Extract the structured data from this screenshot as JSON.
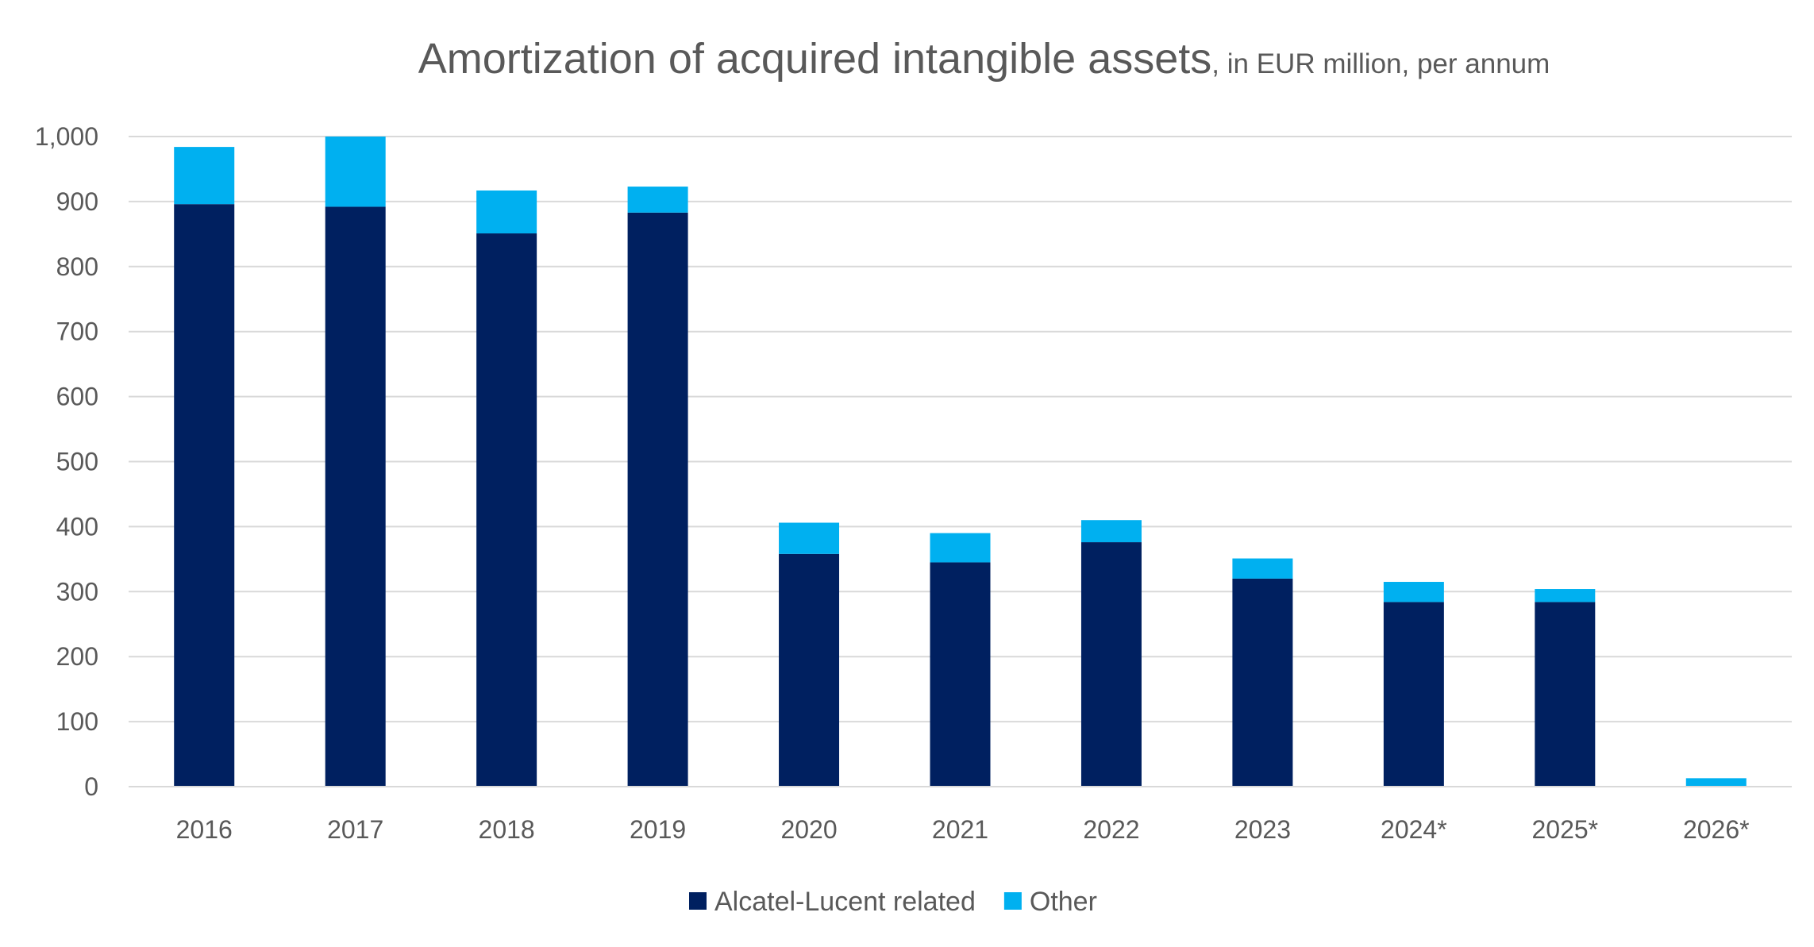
{
  "chart_data": {
    "type": "bar",
    "stacked": true,
    "title": "Amortization of acquired intangible assets",
    "subtitle": ", in EUR million, per annum",
    "xlabel": "",
    "ylabel": "",
    "ylim": [
      0,
      1000
    ],
    "yticks": [
      0,
      100,
      200,
      300,
      400,
      500,
      600,
      700,
      800,
      900,
      1000
    ],
    "ytick_labels": [
      "0",
      "100",
      "200",
      "300",
      "400",
      "500",
      "600",
      "700",
      "800",
      "900",
      "1,000"
    ],
    "grid": true,
    "legend_position": "bottom",
    "categories": [
      "2016",
      "2017",
      "2018",
      "2019",
      "2020",
      "2021",
      "2022",
      "2023",
      "2024*",
      "2025*",
      "2026*"
    ],
    "series": [
      {
        "name": "Alcatel-Lucent related",
        "color": "#002060",
        "values": [
          896,
          892,
          851,
          883,
          358,
          345,
          376,
          320,
          284,
          284,
          0
        ]
      },
      {
        "name": "Other",
        "color": "#00B0F0",
        "values": [
          88,
          108,
          66,
          40,
          48,
          45,
          34,
          31,
          31,
          20,
          13
        ]
      }
    ]
  }
}
